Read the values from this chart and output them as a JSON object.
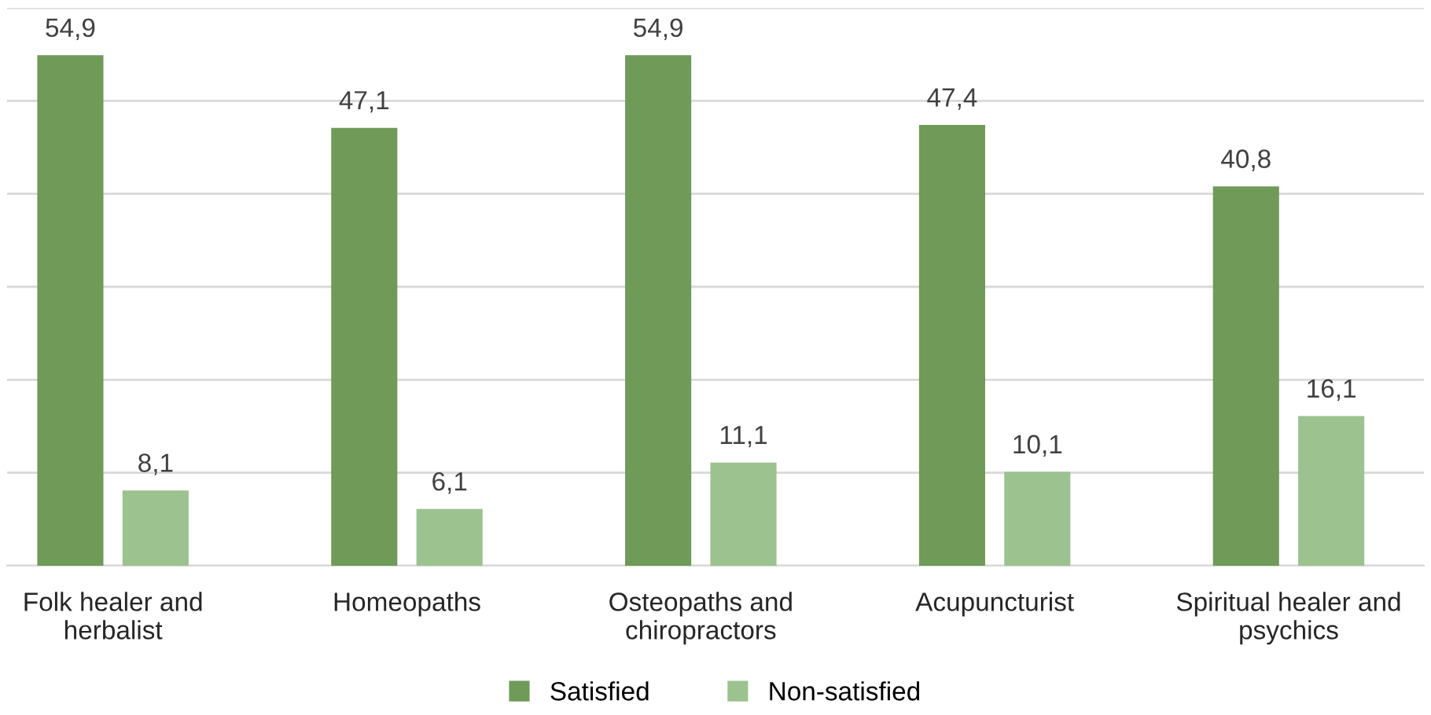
{
  "chart_data": {
    "type": "bar",
    "categories": [
      "Folk healer and\nherbalist",
      "Homeopaths",
      "Osteopaths and\nchiropractors",
      "Acupuncturist",
      "Spiritual healer and\npsychics"
    ],
    "series": [
      {
        "name": "Satisfied",
        "color": "#6f9a58",
        "values": [
          54.9,
          47.1,
          54.9,
          47.4,
          40.8
        ],
        "value_labels": [
          "54,9",
          "47,1",
          "54,9",
          "47,4",
          "40,8"
        ]
      },
      {
        "name": "Non-satisfied",
        "color": "#9cc28f",
        "values": [
          8.1,
          6.1,
          11.1,
          10.1,
          16.1
        ],
        "value_labels": [
          "8,1",
          "6,1",
          "11,1",
          "10,1",
          "16,1"
        ]
      }
    ],
    "ylim": [
      0,
      60
    ],
    "yticks": [
      0,
      {
        "value": 10,
        "label": null
      },
      {
        "value": 20,
        "label": null
      },
      {
        "value": 30,
        "label": null
      },
      {
        "value": 40,
        "label": null
      },
      {
        "value": 50,
        "label": null
      },
      {
        "value": 60,
        "label": null
      }
    ],
    "tick_labels": "x",
    "grid": "y",
    "legend": "bottom"
  }
}
